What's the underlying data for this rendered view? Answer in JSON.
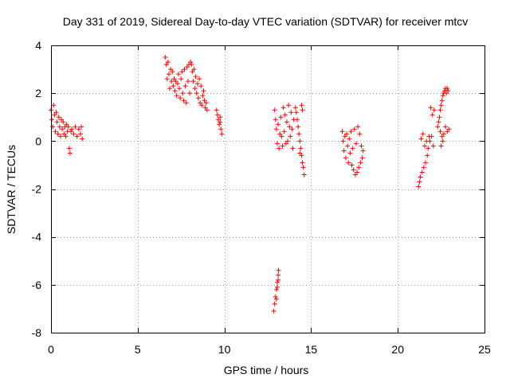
{
  "chart_data": {
    "type": "scatter",
    "title": "Day 331 of 2019, Sidereal Day-to-day VTEC variation (SDTVAR) for receiver mtcv",
    "xlabel": "GPS time / hours",
    "ylabel": "SDTVAR / TECUs",
    "xlim": [
      0,
      25
    ],
    "ylim": [
      -8,
      4
    ],
    "xticks": [
      0,
      5,
      10,
      15,
      20,
      25
    ],
    "yticks": [
      -8,
      -6,
      -4,
      -2,
      0,
      2,
      4
    ],
    "xtick_labels": [
      "0",
      "5",
      "10",
      "15",
      "20",
      "25"
    ],
    "ytick_labels": [
      "-8",
      "-6",
      "-4",
      "-2",
      "0",
      "2",
      "4"
    ],
    "grid": true,
    "marker": "+",
    "series_color": "#ff0000",
    "series": [
      {
        "name": "SDTVAR",
        "points": [
          [
            0.0,
            1.3
          ],
          [
            0.05,
            0.9
          ],
          [
            0.1,
            0.6
          ],
          [
            0.15,
            1.5
          ],
          [
            0.2,
            1.1
          ],
          [
            0.25,
            0.4
          ],
          [
            0.3,
            1.2
          ],
          [
            0.35,
            0.8
          ],
          [
            0.4,
            0.3
          ],
          [
            0.45,
            1.0
          ],
          [
            0.5,
            0.6
          ],
          [
            0.55,
            0.2
          ],
          [
            0.6,
            0.9
          ],
          [
            0.65,
            0.5
          ],
          [
            0.7,
            0.8
          ],
          [
            0.75,
            0.3
          ],
          [
            0.8,
            0.6
          ],
          [
            0.85,
            0.2
          ],
          [
            0.9,
            0.7
          ],
          [
            0.95,
            0.4
          ],
          [
            1.0,
            0.6
          ],
          [
            1.05,
            -0.3
          ],
          [
            1.1,
            -0.5
          ],
          [
            1.15,
            0.4
          ],
          [
            1.2,
            0.5
          ],
          [
            1.3,
            0.3
          ],
          [
            1.4,
            0.6
          ],
          [
            1.5,
            0.2
          ],
          [
            1.6,
            0.5
          ],
          [
            1.7,
            0.3
          ],
          [
            1.75,
            0.6
          ],
          [
            1.8,
            0.1
          ],
          [
            6.6,
            3.5
          ],
          [
            6.65,
            3.2
          ],
          [
            6.7,
            2.6
          ],
          [
            6.75,
            3.3
          ],
          [
            6.8,
            2.8
          ],
          [
            6.85,
            2.2
          ],
          [
            6.9,
            3.0
          ],
          [
            6.95,
            2.5
          ],
          [
            7.0,
            2.9
          ],
          [
            7.05,
            2.3
          ],
          [
            7.1,
            2.6
          ],
          [
            7.15,
            2.1
          ],
          [
            7.2,
            2.5
          ],
          [
            7.25,
            1.9
          ],
          [
            7.3,
            2.4
          ],
          [
            7.35,
            2.8
          ],
          [
            7.4,
            2.2
          ],
          [
            7.45,
            1.8
          ],
          [
            7.5,
            2.6
          ],
          [
            7.55,
            2.9
          ],
          [
            7.6,
            2.0
          ],
          [
            7.65,
            1.7
          ],
          [
            7.7,
            3.0
          ],
          [
            7.75,
            2.3
          ],
          [
            7.8,
            1.6
          ],
          [
            7.85,
            3.1
          ],
          [
            7.9,
            2.5
          ],
          [
            7.95,
            3.2
          ],
          [
            8.0,
            2.0
          ],
          [
            8.05,
            3.3
          ],
          [
            8.1,
            3.2
          ],
          [
            8.15,
            2.9
          ],
          [
            8.2,
            2.5
          ],
          [
            8.25,
            3.0
          ],
          [
            8.3,
            2.2
          ],
          [
            8.35,
            2.7
          ],
          [
            8.4,
            2.0
          ],
          [
            8.45,
            2.4
          ],
          [
            8.5,
            1.8
          ],
          [
            8.55,
            2.6
          ],
          [
            8.6,
            1.6
          ],
          [
            8.65,
            2.3
          ],
          [
            8.7,
            1.5
          ],
          [
            8.75,
            1.9
          ],
          [
            8.8,
            2.1
          ],
          [
            8.85,
            1.7
          ],
          [
            8.9,
            1.4
          ],
          [
            8.95,
            1.6
          ],
          [
            9.0,
            1.3
          ],
          [
            9.55,
            1.3
          ],
          [
            9.6,
            1.1
          ],
          [
            9.65,
            0.9
          ],
          [
            9.7,
            0.7
          ],
          [
            9.75,
            1.0
          ],
          [
            9.8,
            0.5
          ],
          [
            9.85,
            0.3
          ],
          [
            9.75,
            0.8
          ],
          [
            12.85,
            -7.1
          ],
          [
            12.9,
            -6.8
          ],
          [
            12.95,
            -6.5
          ],
          [
            13.0,
            -6.2
          ],
          [
            13.05,
            -5.9
          ],
          [
            13.1,
            -5.6
          ],
          [
            13.12,
            -5.4
          ],
          [
            13.0,
            -6.6
          ],
          [
            13.05,
            -6.1
          ],
          [
            13.1,
            -5.8
          ],
          [
            12.9,
            1.3
          ],
          [
            12.95,
            0.9
          ],
          [
            13.0,
            0.5
          ],
          [
            13.05,
            -0.1
          ],
          [
            13.1,
            0.7
          ],
          [
            13.15,
            -0.3
          ],
          [
            13.2,
            0.3
          ],
          [
            13.25,
            1.0
          ],
          [
            13.3,
            0.2
          ],
          [
            13.35,
            -0.2
          ],
          [
            13.4,
            1.4
          ],
          [
            13.45,
            0.4
          ],
          [
            13.5,
            1.1
          ],
          [
            13.55,
            -0.1
          ],
          [
            13.6,
            0.8
          ],
          [
            13.65,
            0.0
          ],
          [
            13.7,
            1.5
          ],
          [
            13.75,
            0.6
          ],
          [
            13.8,
            0.2
          ],
          [
            13.85,
            1.2
          ],
          [
            13.9,
            0.5
          ],
          [
            13.95,
            -0.3
          ],
          [
            14.0,
            0.9
          ],
          [
            14.1,
            1.4
          ],
          [
            14.15,
            1.2
          ],
          [
            14.2,
            0.9
          ],
          [
            14.25,
            0.6
          ],
          [
            14.3,
            0.3
          ],
          [
            14.35,
            0.0
          ],
          [
            14.4,
            -0.3
          ],
          [
            14.45,
            -0.6
          ],
          [
            14.5,
            -0.9
          ],
          [
            14.55,
            -1.1
          ],
          [
            14.6,
            -1.4
          ],
          [
            14.45,
            1.5
          ],
          [
            14.5,
            1.3
          ],
          [
            14.35,
            -0.5
          ],
          [
            16.8,
            0.4
          ],
          [
            16.85,
            0.0
          ],
          [
            16.9,
            -0.4
          ],
          [
            16.95,
            0.2
          ],
          [
            17.0,
            -0.7
          ],
          [
            17.05,
            0.3
          ],
          [
            17.1,
            -0.2
          ],
          [
            17.15,
            -0.9
          ],
          [
            17.2,
            0.1
          ],
          [
            17.25,
            -0.5
          ],
          [
            17.3,
            0.4
          ],
          [
            17.35,
            -1.0
          ],
          [
            17.4,
            -0.3
          ],
          [
            17.45,
            -1.2
          ],
          [
            17.5,
            0.5
          ],
          [
            17.55,
            -1.4
          ],
          [
            17.6,
            -0.1
          ],
          [
            17.65,
            -1.3
          ],
          [
            17.7,
            0.6
          ],
          [
            17.75,
            -1.1
          ],
          [
            17.8,
            0.3
          ],
          [
            17.85,
            -0.9
          ],
          [
            17.9,
            -0.2
          ],
          [
            17.95,
            -0.7
          ],
          [
            18.0,
            -0.4
          ],
          [
            21.2,
            -1.9
          ],
          [
            21.25,
            -1.7
          ],
          [
            21.3,
            -1.5
          ],
          [
            21.35,
            0.1
          ],
          [
            21.4,
            -1.3
          ],
          [
            21.45,
            0.3
          ],
          [
            21.5,
            -1.1
          ],
          [
            21.55,
            -0.2
          ],
          [
            21.6,
            -0.9
          ],
          [
            21.65,
            0.0
          ],
          [
            21.7,
            -0.6
          ],
          [
            21.75,
            -0.3
          ],
          [
            21.8,
            0.2
          ],
          [
            21.85,
            0.0
          ],
          [
            21.9,
            1.4
          ],
          [
            21.95,
            0.2
          ],
          [
            22.0,
            1.1
          ],
          [
            22.05,
            -0.2
          ],
          [
            22.1,
            1.3
          ],
          [
            22.3,
            0.6
          ],
          [
            22.35,
            0.8
          ],
          [
            22.4,
            1.0
          ],
          [
            22.45,
            1.3
          ],
          [
            22.5,
            1.5
          ],
          [
            22.55,
            1.7
          ],
          [
            22.6,
            1.9
          ],
          [
            22.65,
            2.0
          ],
          [
            22.7,
            2.1
          ],
          [
            22.75,
            2.2
          ],
          [
            22.8,
            2.0
          ],
          [
            22.85,
            2.2
          ],
          [
            22.9,
            2.1
          ],
          [
            22.45,
            0.4
          ],
          [
            22.55,
            0.2
          ],
          [
            22.65,
            0.3
          ],
          [
            22.75,
            0.6
          ],
          [
            22.85,
            0.4
          ],
          [
            22.95,
            0.5
          ],
          [
            22.5,
            -0.2
          ],
          [
            22.6,
            0.0
          ]
        ]
      }
    ]
  }
}
